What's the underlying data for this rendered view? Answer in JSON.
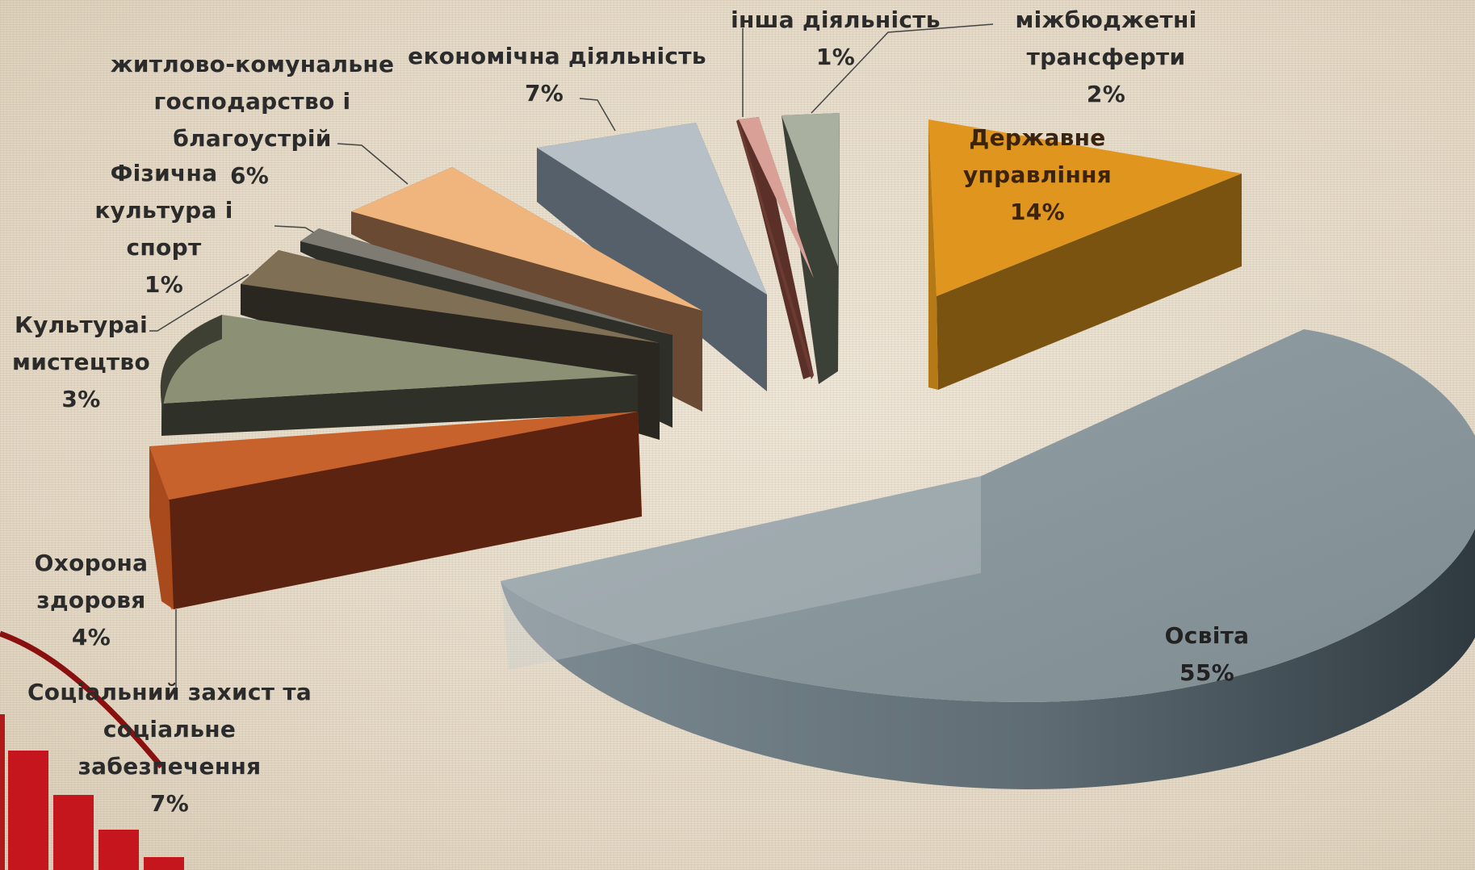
{
  "chart_data": {
    "type": "pie",
    "title": "",
    "slices": [
      {
        "name": "Державне\nуправління",
        "pct_label": "14%",
        "value": 14,
        "color": "#e0961e"
      },
      {
        "name": "Освіта",
        "pct_label": "55%",
        "value": 55,
        "color": "#8b989e"
      },
      {
        "name": "Соціальний захист та\nсоціальне забезпечення",
        "pct_label": "7%",
        "value": 7,
        "color": "#6b2a10"
      },
      {
        "name": "Охорона\nздоровя",
        "pct_label": "4%",
        "value": 4,
        "color": "#c8622c"
      },
      {
        "name": "Культураі\nмистецтво",
        "pct_label": "3%",
        "value": 3,
        "color": "#8c9175"
      },
      {
        "name": "Фізична\nкультура і спорт",
        "pct_label": "1%",
        "value": 1,
        "color": "#7e6f55"
      },
      {
        "name": "житлово-комунальне\nгосподарство і\nблагоустрій",
        "pct_label": "6%",
        "value": 6,
        "color": "#7a766e"
      },
      {
        "name": "економічна діяльність",
        "pct_label": "7%",
        "value": 7,
        "color": "#f0b57c"
      },
      {
        "name": "інша діяльність",
        "pct_label": "1%",
        "value": 1,
        "color": "#b6c0c6"
      },
      {
        "name": "міжбюджетні\nтрансферти",
        "pct_label": "2%",
        "value": 2,
        "color": "#d49488"
      }
    ],
    "legend": "none"
  }
}
